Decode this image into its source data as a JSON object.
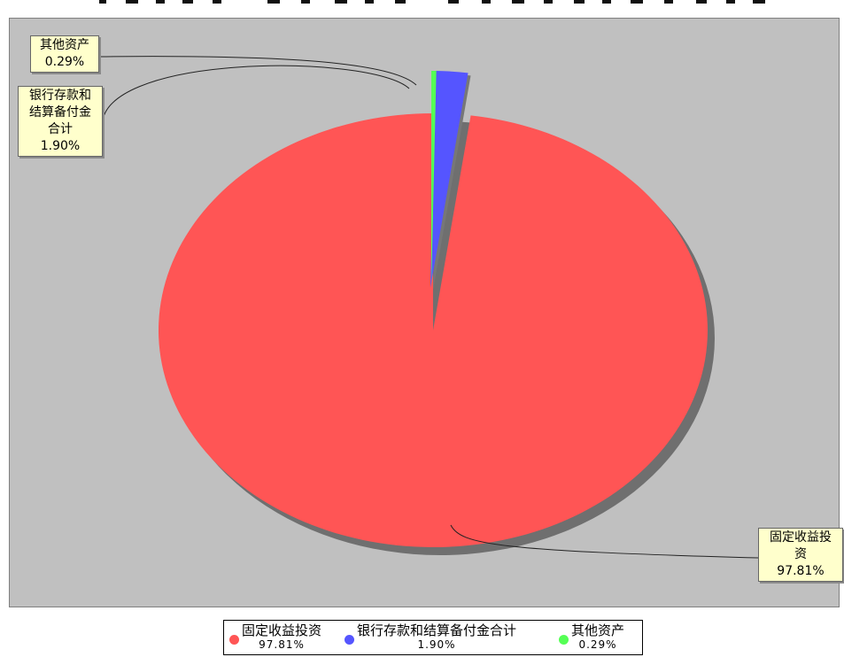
{
  "chart_data": {
    "type": "pie",
    "title": "",
    "slices": [
      {
        "name": "固定收益投资",
        "value": 97.81,
        "label_text": "97.81%",
        "legend_pct": "97.81%",
        "color": "#ff5555"
      },
      {
        "name": "银行存款和结算备付金合计",
        "value": 1.9,
        "label_text": "1.90%",
        "legend_pct": "1.90%",
        "color": "#5555ff"
      },
      {
        "name": "其他资产",
        "value": 0.29,
        "label_text": "0.29%",
        "legend_pct": "0.29%",
        "color": "#55ff55"
      }
    ],
    "callouts": [
      {
        "lines": [
          "固定收益投",
          "资"
        ],
        "pct": "97.81%"
      },
      {
        "lines": [
          "银行存款和",
          "结算备付金",
          "合计"
        ],
        "pct": "1.90%"
      },
      {
        "lines": [
          "其他资产"
        ],
        "pct": "0.29%"
      }
    ],
    "start_angle": "12 o'clock",
    "direction": "counterclockwise",
    "background": "#c0c0c0",
    "legend_position": "bottom"
  }
}
